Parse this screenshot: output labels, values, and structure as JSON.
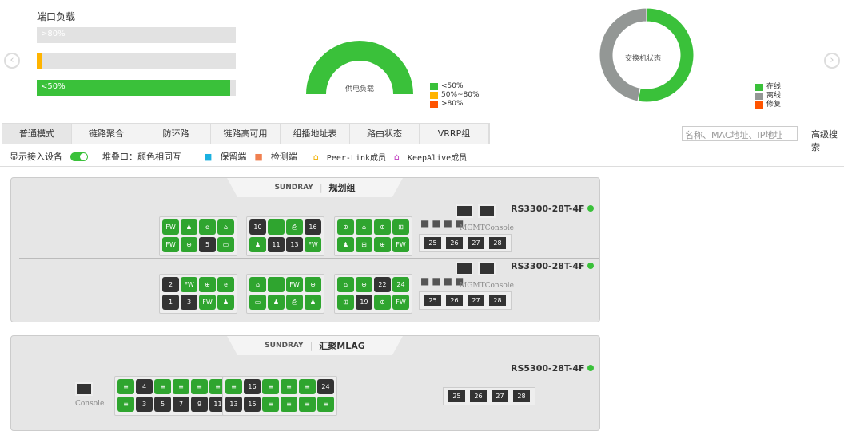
{
  "port_load": {
    "title": "端口负载",
    "bars": [
      {
        "label": ">80%",
        "value": 0,
        "color": "#ffb400"
      },
      {
        "label": "",
        "value": 3,
        "color": "#ffb400"
      },
      {
        "label": "<50%",
        "value": 97,
        "color": "#3ac13a"
      }
    ]
  },
  "power": {
    "title": "供电负载",
    "legend": [
      {
        "label": "<50%",
        "color": "#3ac13a"
      },
      {
        "label": "50%~80%",
        "color": "#ffb400"
      },
      {
        "label": ">80%",
        "color": "#ff5400"
      }
    ],
    "values": [
      100,
      0,
      0
    ]
  },
  "switch_status": {
    "title": "交换机状态",
    "legend": [
      {
        "label": "在线",
        "color": "#3ac13a"
      },
      {
        "label": "离线",
        "color": "#939795"
      },
      {
        "label": "修复",
        "color": "#ff5400"
      }
    ],
    "values": [
      53,
      47,
      0
    ]
  },
  "tabs": [
    "普通模式",
    "链路聚合",
    "防环路",
    "链路高可用",
    "组播地址表",
    "路由状态",
    "VRRP组"
  ],
  "search": {
    "placeholder": "名称、MAC地址、IP地址",
    "advanced": "高级搜索"
  },
  "options": {
    "show_devices": "显示接入设备",
    "show_devices_on": true,
    "stack": "堆叠口：颜色相同互",
    "reserved": "保留端",
    "detect": "检测端",
    "peer": "Peer-Link成员",
    "keepalive": "KeepAlive成员"
  },
  "groups": [
    {
      "brand": "SUNDRAY",
      "name": "规划组",
      "switches": [
        {
          "model": "RS3300-28T-4F",
          "mgmt": "MGMT",
          "console": "Console",
          "top": [
            [
              "up",
              "FW"
            ],
            [
              "up",
              "♟"
            ],
            [
              "up",
              "e"
            ],
            [
              "up",
              "⌂"
            ],
            [
              "down",
              "10"
            ],
            [
              "up",
              ""
            ],
            [
              "up",
              "⎙"
            ],
            [
              "down",
              "16"
            ],
            [
              "up",
              "⊕"
            ],
            [
              "up",
              "⌂"
            ],
            [
              "up",
              "⊕"
            ],
            [
              "up",
              "⊞"
            ]
          ],
          "bottom": [
            [
              "up",
              "FW"
            ],
            [
              "up",
              "⊕"
            ],
            [
              "down",
              "5"
            ],
            [
              "up",
              "▭"
            ],
            [
              "up",
              "♟"
            ],
            [
              "down",
              "11"
            ],
            [
              "down",
              "13"
            ],
            [
              "up",
              "FW"
            ],
            [
              "up",
              "♟"
            ],
            [
              "up",
              "⊞"
            ],
            [
              "up",
              "⊕"
            ],
            [
              "up",
              "FW"
            ]
          ],
          "sfp": [
            "25",
            "26",
            "27",
            "28"
          ]
        },
        {
          "model": "RS3300-28T-4F",
          "mgmt": "MGMT",
          "console": "Console",
          "top": [
            [
              "down",
              "2"
            ],
            [
              "up",
              "FW"
            ],
            [
              "up",
              "⊕"
            ],
            [
              "up",
              "e"
            ],
            [
              "up",
              "⌂"
            ],
            [
              "up",
              ""
            ],
            [
              "up",
              "FW"
            ],
            [
              "up",
              "⊕"
            ],
            [
              "up",
              "⌂"
            ],
            [
              "up",
              "⊕"
            ],
            [
              "down",
              "22"
            ],
            [
              "up",
              "24"
            ]
          ],
          "bottom": [
            [
              "down",
              "1"
            ],
            [
              "down",
              "3"
            ],
            [
              "up",
              "FW"
            ],
            [
              "up",
              "♟"
            ],
            [
              "up",
              "▭"
            ],
            [
              "up",
              "♟"
            ],
            [
              "up",
              "⎙"
            ],
            [
              "up",
              "♟"
            ],
            [
              "up",
              "⊞"
            ],
            [
              "down",
              "19"
            ],
            [
              "up",
              "⊕"
            ],
            [
              "up",
              "FW"
            ]
          ],
          "sfp": [
            "25",
            "26",
            "27",
            "28"
          ]
        }
      ]
    },
    {
      "brand": "SUNDRAY",
      "name": "汇聚MLAG",
      "switches": [
        {
          "model": "RS5300-28T-4F",
          "console": "Console",
          "top": [
            [
              "up",
              "≡"
            ],
            [
              "down",
              "4"
            ],
            [
              "up",
              "≡"
            ],
            [
              "up",
              "≡"
            ],
            [
              "up",
              "≡"
            ],
            [
              "up",
              "≡"
            ],
            [
              "up",
              "≡"
            ],
            [
              "down",
              "16"
            ],
            [
              "up",
              "≡"
            ],
            [
              "up",
              "≡"
            ],
            [
              "up",
              "≡"
            ],
            [
              "down",
              "24"
            ]
          ],
          "bottom": [
            [
              "up",
              "≡"
            ],
            [
              "down",
              "3"
            ],
            [
              "down",
              "5"
            ],
            [
              "down",
              "7"
            ],
            [
              "down",
              "9"
            ],
            [
              "down",
              "11"
            ],
            [
              "down",
              "13"
            ],
            [
              "down",
              "15"
            ],
            [
              "up",
              "≡"
            ],
            [
              "up",
              "≡"
            ],
            [
              "up",
              "≡"
            ],
            [
              "up",
              "≡"
            ]
          ],
          "sfp": [
            "25",
            "26",
            "27",
            "28"
          ]
        }
      ]
    }
  ]
}
